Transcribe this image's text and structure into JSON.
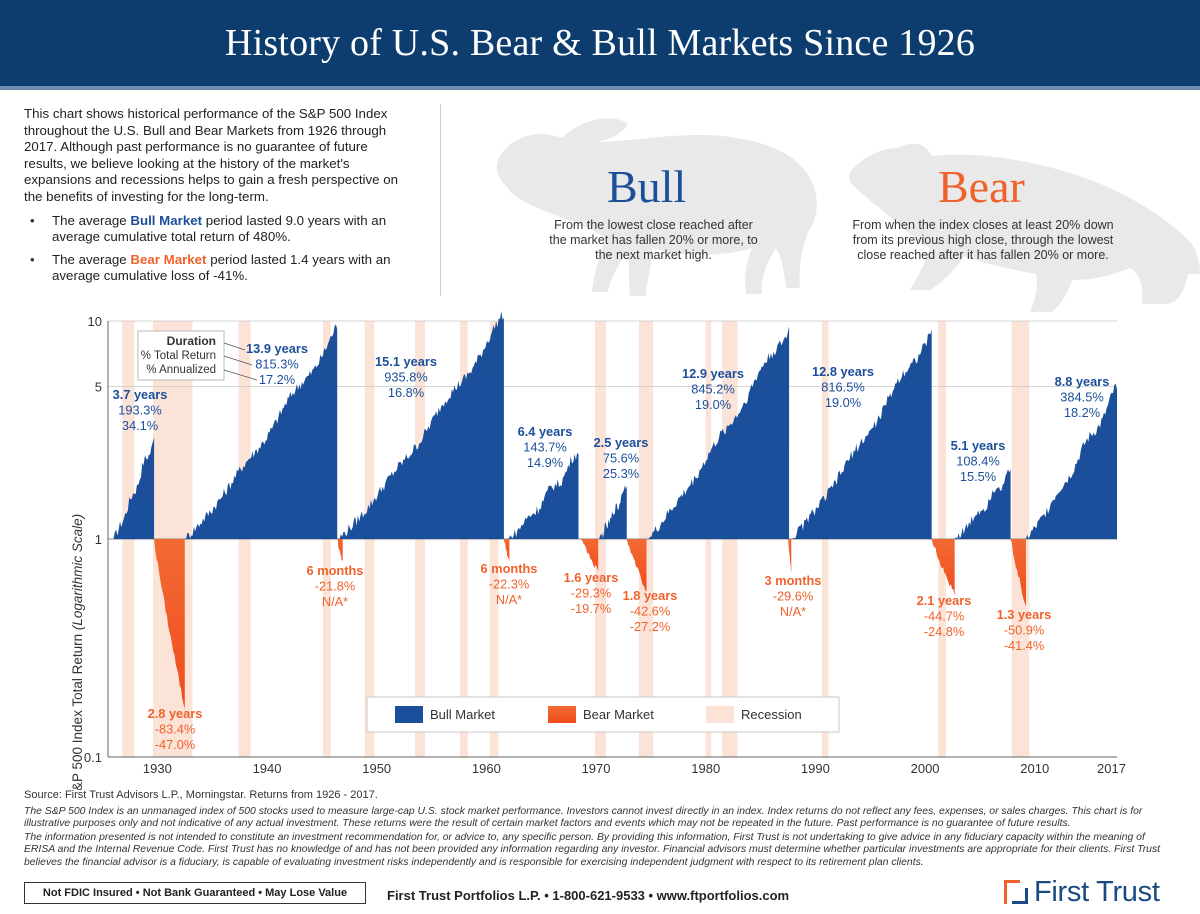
{
  "header": {
    "title": "History of U.S. Bear & Bull Markets Since 1926"
  },
  "intro": {
    "paragraph": "This chart shows historical performance of the S&P 500 Index throughout the U.S. Bull and Bear Markets from 1926 through 2017. Although past performance is no guarantee of future results, we believe looking at the history of the market's expansions and recessions helps to gain a fresh perspective on the benefits of investing for the long-term.",
    "bullet1_pre": "The average ",
    "bullet1_key": "Bull Market",
    "bullet1_post": " period lasted 9.0 years with an average cumulative total return of 480%.",
    "bullet2_pre": "The average ",
    "bullet2_key": "Bear Market",
    "bullet2_post": " period lasted 1.4 years with an average cumulative loss of -41%."
  },
  "bull": {
    "title": "Bull",
    "desc": "From the lowest close reached after the market has fallen 20% or more, to the next market high."
  },
  "bear": {
    "title": "Bear",
    "desc": "From when the index closes at least 20% down from its previous high close, through the lowest close reached after it has fallen 20% or more."
  },
  "colors": {
    "bull": "#1c4f9a",
    "bear": "#f0622c",
    "recession": "#fbe3d8",
    "header": "#0d3d6e"
  },
  "chart_data": {
    "type": "area",
    "ylabel_main": "S&P 500 Index Total Return ",
    "ylabel_italic": "(Logarithmic Scale)",
    "yscale": "log",
    "ylim": [
      0.1,
      10
    ],
    "yticks": [
      "10",
      "5",
      "1",
      "0.1"
    ],
    "ytick_values": [
      10,
      5,
      1,
      0.1
    ],
    "xlim": [
      1925.5,
      2017.5
    ],
    "xticks": [
      1930,
      1940,
      1950,
      1960,
      1970,
      1980,
      1990,
      2000,
      2010,
      2017
    ],
    "duration_key": {
      "line1": "Duration",
      "line2": "% Total Return",
      "line3": "% Annualized"
    },
    "legend": {
      "bull": "Bull Market",
      "bear": "Bear Market",
      "recession": "Recession"
    },
    "recessions": [
      [
        1926.8,
        1927.9
      ],
      [
        1929.6,
        1933.2
      ],
      [
        1937.4,
        1938.5
      ],
      [
        1945.1,
        1945.8
      ],
      [
        1948.9,
        1949.8
      ],
      [
        1953.5,
        1954.4
      ],
      [
        1957.6,
        1958.3
      ],
      [
        1960.3,
        1961.1
      ],
      [
        1969.9,
        1970.9
      ],
      [
        1973.9,
        1975.2
      ],
      [
        1980.0,
        1980.5
      ],
      [
        1981.5,
        1982.9
      ],
      [
        1990.6,
        1991.2
      ],
      [
        2001.2,
        2001.9
      ],
      [
        2007.9,
        2009.5
      ]
    ],
    "bull_markets": [
      {
        "start": 1926.0,
        "end": 1929.7,
        "peak": 2.93,
        "duration": "3.7 years",
        "total_return": "193.3%",
        "annualized": "34.1%"
      },
      {
        "start": 1932.5,
        "end": 1946.4,
        "peak": 9.15,
        "duration": "13.9 years",
        "total_return": "815.3%",
        "annualized": "17.2%"
      },
      {
        "start": 1946.5,
        "end": 1961.6,
        "peak": 10.36,
        "duration": "15.1 years",
        "total_return": "935.8%",
        "annualized": "16.8%"
      },
      {
        "start": 1962.0,
        "end": 1968.4,
        "peak": 2.44,
        "duration": "6.4 years",
        "total_return": "143.7%",
        "annualized": "14.9%"
      },
      {
        "start": 1970.3,
        "end": 1972.8,
        "peak": 1.76,
        "duration": "2.5 years",
        "total_return": "75.6%",
        "annualized": "25.3%"
      },
      {
        "start": 1974.7,
        "end": 1987.6,
        "peak": 9.45,
        "duration": "12.9 years",
        "total_return": "845.2%",
        "annualized": "19.0%"
      },
      {
        "start": 1987.8,
        "end": 2000.6,
        "peak": 9.17,
        "duration": "12.8 years",
        "total_return": "816.5%",
        "annualized": "19.0%"
      },
      {
        "start": 2002.7,
        "end": 2007.8,
        "peak": 2.08,
        "duration": "5.1 years",
        "total_return": "108.4%",
        "annualized": "15.5%"
      },
      {
        "start": 2009.2,
        "end": 2017.5,
        "peak": 4.85,
        "duration": "8.8 years",
        "total_return": "384.5%",
        "annualized": "18.2%"
      }
    ],
    "bear_markets": [
      {
        "start": 1929.7,
        "end": 1932.5,
        "trough": 0.166,
        "duration": "2.8 years",
        "total_return": "-83.4%",
        "annualized": "-47.0%"
      },
      {
        "start": 1946.4,
        "end": 1946.9,
        "trough": 0.782,
        "duration": "6 months",
        "total_return": "-21.8%",
        "annualized": "N/A*"
      },
      {
        "start": 1961.6,
        "end": 1962.1,
        "trough": 0.777,
        "duration": "6 months",
        "total_return": "-22.3%",
        "annualized": "N/A*"
      },
      {
        "start": 1968.6,
        "end": 1970.2,
        "trough": 0.707,
        "duration": "1.6 years",
        "total_return": "-29.3%",
        "annualized": "-19.7%"
      },
      {
        "start": 1972.8,
        "end": 1974.6,
        "trough": 0.574,
        "duration": "1.8 years",
        "total_return": "-42.6%",
        "annualized": "-27.2%"
      },
      {
        "start": 1987.5,
        "end": 1987.8,
        "trough": 0.704,
        "duration": "3 months",
        "total_return": "-29.6%",
        "annualized": "N/A*"
      },
      {
        "start": 2000.6,
        "end": 2002.7,
        "trough": 0.553,
        "duration": "2.1 years",
        "total_return": "-44.7%",
        "annualized": "-24.8%"
      },
      {
        "start": 2007.8,
        "end": 2009.2,
        "trough": 0.491,
        "duration": "1.3 years",
        "total_return": "-50.9%",
        "annualized": "-41.4%"
      }
    ]
  },
  "footer": {
    "source": "Source: First Trust Advisors L.P., Morningstar. Returns from 1926 - 2017.",
    "disclaimer1": "The S&P 500 Index is an unmanaged index of 500 stocks used to measure large-cap U.S. stock market performance. Investors cannot invest directly in an index. Index returns do not reflect any fees, expenses, or sales charges. This chart is for illustrative purposes only and not indicative of any actual investment. These returns were the result of certain market factors and events which may not be repeated in the future. Past performance is no guarantee of future results.",
    "disclaimer2": "The information presented is not intended to constitute an investment recommendation for, or advice to, any specific person. By providing this information, First Trust is not undertaking to give advice in any fiduciary capacity within the meaning of ERISA and the Internal Revenue Code. First Trust has no knowledge of and has not been provided any information regarding any investor. Financial advisors must determine whether particular investments are appropriate for their clients. First Trust believes the financial advisor is a fiduciary, is capable of evaluating investment risks independently and is responsible for exercising independent judgment with respect to its retirement plan clients.",
    "fdic": "Not FDIC Insured • Not Bank Guaranteed • May Lose Value",
    "contact": "First Trust Portfolios L.P. • 1-800-621-9533 • www.ftportfolios.com",
    "logo": "First Trust"
  }
}
